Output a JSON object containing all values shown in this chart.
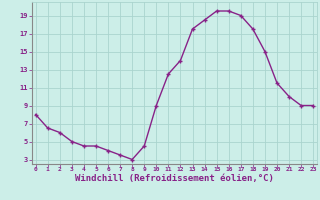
{
  "x": [
    0,
    1,
    2,
    3,
    4,
    5,
    6,
    7,
    8,
    9,
    10,
    11,
    12,
    13,
    14,
    15,
    16,
    17,
    18,
    19,
    20,
    21,
    22,
    23
  ],
  "y": [
    8.0,
    6.5,
    6.0,
    5.0,
    4.5,
    4.5,
    4.0,
    3.5,
    3.0,
    4.5,
    9.0,
    12.5,
    14.0,
    17.5,
    18.5,
    19.5,
    19.5,
    19.0,
    17.5,
    15.0,
    11.5,
    10.0,
    9.0,
    9.0
  ],
  "line_color": "#882288",
  "marker": "+",
  "marker_size": 3.5,
  "marker_linewidth": 1.0,
  "line_width": 1.0,
  "xlabel": "Windchill (Refroidissement éolien,°C)",
  "xlabel_fontsize": 6.5,
  "background_color": "#cceee8",
  "grid_color": "#aad4ce",
  "tick_color": "#882288",
  "label_color": "#882288",
  "yticks": [
    3,
    5,
    7,
    9,
    11,
    13,
    15,
    17,
    19
  ],
  "xticks": [
    0,
    1,
    2,
    3,
    4,
    5,
    6,
    7,
    8,
    9,
    10,
    11,
    12,
    13,
    14,
    15,
    16,
    17,
    18,
    19,
    20,
    21,
    22,
    23
  ],
  "ylim": [
    2.5,
    20.5
  ],
  "xlim": [
    -0.3,
    23.3
  ]
}
